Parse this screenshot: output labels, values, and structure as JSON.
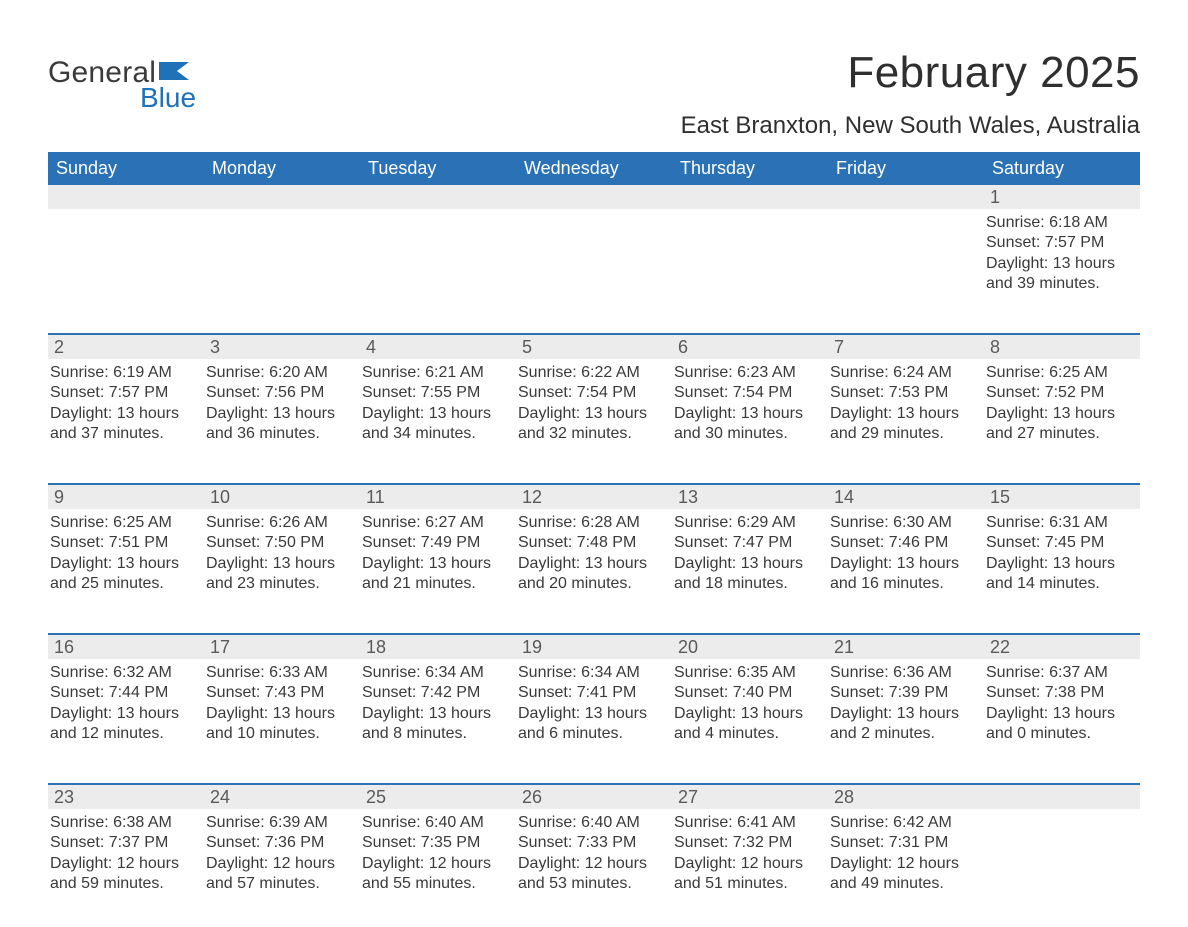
{
  "logo": {
    "word1": "General",
    "word2": "Blue",
    "flag_color": "#1f72b8"
  },
  "title": "February 2025",
  "location": "East Branxton, New South Wales, Australia",
  "colors": {
    "header_bg": "#2a72b5",
    "header_text": "#ffffff",
    "daynum_bg": "#ececec",
    "week_divider": "#2a72b5",
    "text": "#3a3a3a"
  },
  "fonts": {
    "title_size_pt": 33,
    "location_size_pt": 18,
    "dayhead_size_pt": 14,
    "body_size_pt": 12
  },
  "day_headers": [
    "Sunday",
    "Monday",
    "Tuesday",
    "Wednesday",
    "Thursday",
    "Friday",
    "Saturday"
  ],
  "weeks": [
    [
      null,
      null,
      null,
      null,
      null,
      null,
      {
        "n": "1",
        "sunrise": "6:18 AM",
        "sunset": "7:57 PM",
        "dlh": "13",
        "dlm": "39"
      }
    ],
    [
      {
        "n": "2",
        "sunrise": "6:19 AM",
        "sunset": "7:57 PM",
        "dlh": "13",
        "dlm": "37"
      },
      {
        "n": "3",
        "sunrise": "6:20 AM",
        "sunset": "7:56 PM",
        "dlh": "13",
        "dlm": "36"
      },
      {
        "n": "4",
        "sunrise": "6:21 AM",
        "sunset": "7:55 PM",
        "dlh": "13",
        "dlm": "34"
      },
      {
        "n": "5",
        "sunrise": "6:22 AM",
        "sunset": "7:54 PM",
        "dlh": "13",
        "dlm": "32"
      },
      {
        "n": "6",
        "sunrise": "6:23 AM",
        "sunset": "7:54 PM",
        "dlh": "13",
        "dlm": "30"
      },
      {
        "n": "7",
        "sunrise": "6:24 AM",
        "sunset": "7:53 PM",
        "dlh": "13",
        "dlm": "29"
      },
      {
        "n": "8",
        "sunrise": "6:25 AM",
        "sunset": "7:52 PM",
        "dlh": "13",
        "dlm": "27"
      }
    ],
    [
      {
        "n": "9",
        "sunrise": "6:25 AM",
        "sunset": "7:51 PM",
        "dlh": "13",
        "dlm": "25"
      },
      {
        "n": "10",
        "sunrise": "6:26 AM",
        "sunset": "7:50 PM",
        "dlh": "13",
        "dlm": "23"
      },
      {
        "n": "11",
        "sunrise": "6:27 AM",
        "sunset": "7:49 PM",
        "dlh": "13",
        "dlm": "21"
      },
      {
        "n": "12",
        "sunrise": "6:28 AM",
        "sunset": "7:48 PM",
        "dlh": "13",
        "dlm": "20"
      },
      {
        "n": "13",
        "sunrise": "6:29 AM",
        "sunset": "7:47 PM",
        "dlh": "13",
        "dlm": "18"
      },
      {
        "n": "14",
        "sunrise": "6:30 AM",
        "sunset": "7:46 PM",
        "dlh": "13",
        "dlm": "16"
      },
      {
        "n": "15",
        "sunrise": "6:31 AM",
        "sunset": "7:45 PM",
        "dlh": "13",
        "dlm": "14"
      }
    ],
    [
      {
        "n": "16",
        "sunrise": "6:32 AM",
        "sunset": "7:44 PM",
        "dlh": "13",
        "dlm": "12"
      },
      {
        "n": "17",
        "sunrise": "6:33 AM",
        "sunset": "7:43 PM",
        "dlh": "13",
        "dlm": "10"
      },
      {
        "n": "18",
        "sunrise": "6:34 AM",
        "sunset": "7:42 PM",
        "dlh": "13",
        "dlm": "8"
      },
      {
        "n": "19",
        "sunrise": "6:34 AM",
        "sunset": "7:41 PM",
        "dlh": "13",
        "dlm": "6"
      },
      {
        "n": "20",
        "sunrise": "6:35 AM",
        "sunset": "7:40 PM",
        "dlh": "13",
        "dlm": "4"
      },
      {
        "n": "21",
        "sunrise": "6:36 AM",
        "sunset": "7:39 PM",
        "dlh": "13",
        "dlm": "2"
      },
      {
        "n": "22",
        "sunrise": "6:37 AM",
        "sunset": "7:38 PM",
        "dlh": "13",
        "dlm": "0"
      }
    ],
    [
      {
        "n": "23",
        "sunrise": "6:38 AM",
        "sunset": "7:37 PM",
        "dlh": "12",
        "dlm": "59"
      },
      {
        "n": "24",
        "sunrise": "6:39 AM",
        "sunset": "7:36 PM",
        "dlh": "12",
        "dlm": "57"
      },
      {
        "n": "25",
        "sunrise": "6:40 AM",
        "sunset": "7:35 PM",
        "dlh": "12",
        "dlm": "55"
      },
      {
        "n": "26",
        "sunrise": "6:40 AM",
        "sunset": "7:33 PM",
        "dlh": "12",
        "dlm": "53"
      },
      {
        "n": "27",
        "sunrise": "6:41 AM",
        "sunset": "7:32 PM",
        "dlh": "12",
        "dlm": "51"
      },
      {
        "n": "28",
        "sunrise": "6:42 AM",
        "sunset": "7:31 PM",
        "dlh": "12",
        "dlm": "49"
      },
      null
    ]
  ],
  "labels": {
    "sunrise_prefix": "Sunrise: ",
    "sunset_prefix": "Sunset: ",
    "daylight_prefix": "Daylight: ",
    "hours_word": " hours",
    "and_word": "and ",
    "minutes_word": " minutes."
  }
}
